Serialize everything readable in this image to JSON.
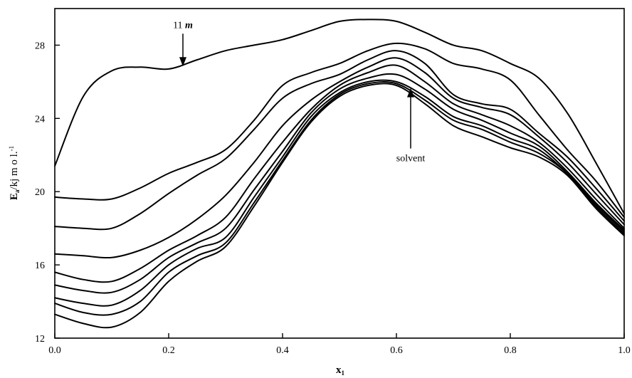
{
  "chart_data": {
    "type": "line",
    "title": "",
    "xlabel": "x",
    "xlabel_sub": "1",
    "ylabel": "E",
    "ylabel_sub": "a",
    "ylabel_unit": "/kj m o l.",
    "ylabel_sup": "-1",
    "xlim": [
      0.0,
      1.0
    ],
    "ylim": [
      12,
      30
    ],
    "x_ticks": [
      "0.0",
      "0.2",
      "0.4",
      "0.6",
      "0.8",
      "1.0"
    ],
    "y_ticks": [
      "12",
      "16",
      "20",
      "24",
      "28"
    ],
    "x": [
      0.0,
      0.05,
      0.1,
      0.15,
      0.2,
      0.25,
      0.3,
      0.35,
      0.4,
      0.45,
      0.5,
      0.55,
      0.6,
      0.65,
      0.7,
      0.75,
      0.8,
      0.85,
      0.9,
      0.95,
      1.0
    ],
    "series": [
      {
        "name": "11 m",
        "values": [
          21.4,
          25.2,
          26.6,
          26.8,
          26.7,
          27.2,
          27.7,
          28.0,
          28.3,
          28.8,
          29.3,
          29.4,
          29.3,
          28.7,
          28.0,
          27.7,
          27.0,
          26.2,
          24.3,
          21.6,
          18.8
        ]
      },
      {
        "values": [
          19.7,
          19.6,
          19.6,
          20.2,
          21.0,
          21.6,
          22.3,
          23.9,
          25.8,
          26.5,
          27.0,
          27.7,
          28.1,
          27.8,
          27.0,
          26.7,
          26.1,
          24.2,
          22.3,
          20.6,
          18.6
        ]
      },
      {
        "values": [
          18.1,
          18.0,
          18.0,
          18.8,
          19.9,
          20.9,
          21.8,
          23.4,
          25.1,
          25.9,
          26.4,
          27.2,
          27.7,
          27.0,
          25.3,
          24.8,
          24.5,
          23.2,
          21.9,
          20.2,
          18.4
        ]
      },
      {
        "values": [
          16.6,
          16.5,
          16.4,
          16.8,
          17.5,
          18.5,
          19.8,
          21.6,
          23.6,
          25.0,
          26.0,
          26.8,
          27.3,
          26.5,
          25.1,
          24.6,
          24.2,
          23.0,
          21.6,
          19.9,
          18.2
        ]
      },
      {
        "values": [
          15.6,
          15.2,
          15.1,
          15.8,
          16.8,
          17.6,
          18.6,
          20.7,
          22.7,
          24.5,
          25.8,
          26.5,
          26.9,
          26.0,
          24.8,
          24.2,
          23.6,
          22.7,
          21.3,
          19.6,
          18.0
        ]
      },
      {
        "values": [
          14.9,
          14.6,
          14.5,
          15.2,
          16.4,
          17.2,
          18.0,
          20.1,
          22.2,
          24.3,
          25.6,
          26.2,
          26.4,
          25.6,
          24.5,
          23.9,
          23.2,
          22.5,
          21.1,
          19.4,
          17.9
        ]
      },
      {
        "values": [
          14.2,
          13.9,
          13.8,
          14.6,
          16.0,
          16.9,
          17.5,
          19.7,
          21.9,
          24.1,
          25.4,
          26.0,
          26.0,
          25.2,
          24.1,
          23.6,
          22.9,
          22.3,
          21.0,
          19.3,
          17.8
        ]
      },
      {
        "values": [
          13.9,
          13.4,
          13.3,
          14.0,
          15.6,
          16.5,
          17.2,
          19.4,
          21.7,
          23.9,
          25.3,
          25.9,
          25.9,
          25.0,
          23.9,
          23.4,
          22.7,
          22.1,
          21.0,
          19.2,
          17.7
        ]
      },
      {
        "name": "solvent",
        "values": [
          13.3,
          12.8,
          12.6,
          13.4,
          15.1,
          16.2,
          17.0,
          19.2,
          21.6,
          23.8,
          25.2,
          25.8,
          25.8,
          24.8,
          23.6,
          23.0,
          22.4,
          21.9,
          20.9,
          19.1,
          17.6
        ]
      }
    ],
    "annotations": [
      {
        "text": "11",
        "emphasis": "m",
        "x": 0.225,
        "y": 26.8
      },
      {
        "text": "solvent",
        "x": 0.625,
        "y": 25.7
      }
    ],
    "grid": false,
    "legend": "none"
  }
}
